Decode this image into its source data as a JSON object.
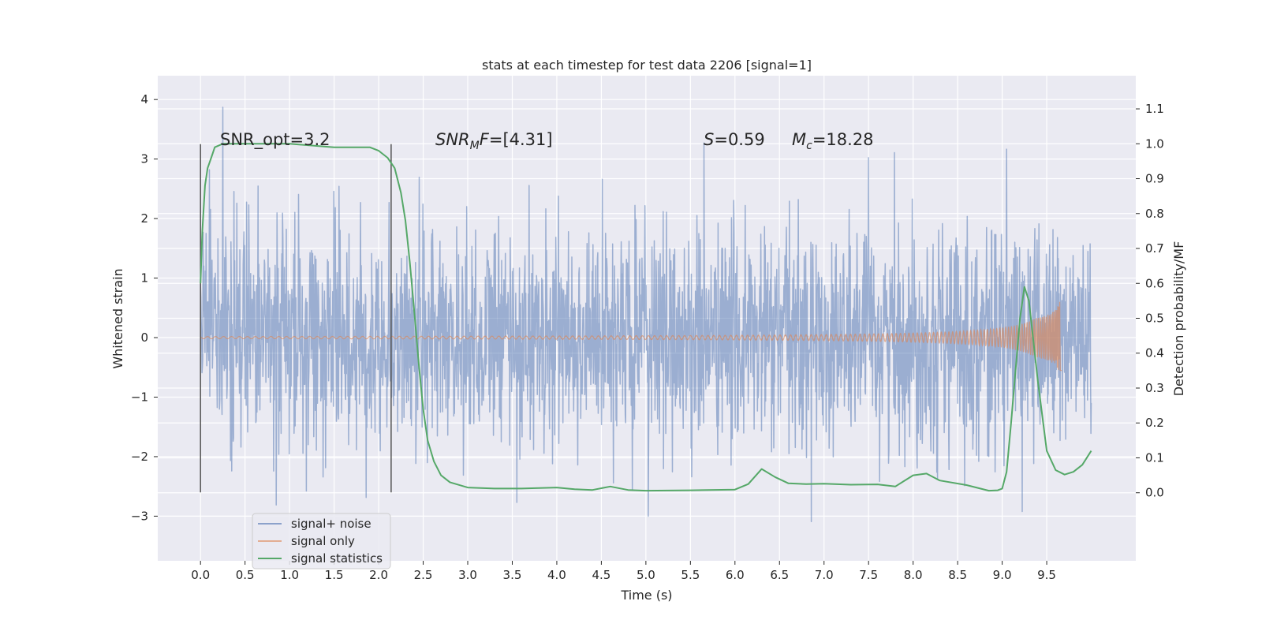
{
  "chart_data": {
    "type": "line",
    "title": "stats at each timestep for test data 2206 [signal=1]",
    "xlabel": "Time (s)",
    "ylabel": "Whitened strain",
    "ylabel_right": "Detection probability/MF",
    "xlim": [
      -0.48,
      10.5
    ],
    "ylim": [
      -3.75,
      4.4
    ],
    "ylim_right": [
      -0.195,
      1.195
    ],
    "x_ticks": [
      "0.0",
      "0.5",
      "1.0",
      "1.5",
      "2.0",
      "2.5",
      "3.0",
      "3.5",
      "4.0",
      "4.5",
      "5.0",
      "5.5",
      "6.0",
      "6.5",
      "7.0",
      "7.5",
      "8.0",
      "8.5",
      "9.0",
      "9.5"
    ],
    "y_ticks": [
      "4",
      "3",
      "2",
      "1",
      "0",
      "−1",
      "−2",
      "−3"
    ],
    "y_right_ticks": [
      "1.1",
      "1.0",
      "0.9",
      "0.8",
      "0.7",
      "0.6",
      "0.5",
      "0.4",
      "0.3",
      "0.2",
      "0.1",
      "0.0"
    ],
    "grid": true,
    "legend_position": "lower-left",
    "annotations": {
      "snr_opt": "SNR_opt=3.2",
      "snr_mf": "[4.31]",
      "stat_s": "=0.59",
      "chirp_mass": "=18.28"
    },
    "vertical_markers": [
      {
        "x": 0.0,
        "y_range": [
          -2.6,
          3.25
        ]
      },
      {
        "x": 2.14,
        "y_range": [
          -2.6,
          3.25
        ]
      }
    ],
    "series": [
      {
        "name": "signal+ noise",
        "color": "#4c72b0",
        "axis": "left",
        "noise_profile": {
          "x_range": [
            0.0,
            10.0
          ],
          "std": 0.93,
          "clip": [
            -3.4,
            4.05
          ]
        }
      },
      {
        "name": "signal only",
        "color": "#dd8452",
        "axis": "left",
        "chirp_profile": {
          "x_range": [
            0.0,
            9.67
          ],
          "peak_amplitude": 0.65,
          "peak_time": 9.67
        }
      },
      {
        "name": "signal statistics",
        "color": "#55a868",
        "axis": "right",
        "x": [
          0.0,
          0.02,
          0.05,
          0.08,
          0.12,
          0.16,
          0.25,
          0.5,
          1.0,
          1.5,
          1.7,
          1.9,
          2.0,
          2.1,
          2.18,
          2.25,
          2.3,
          2.35,
          2.4,
          2.45,
          2.5,
          2.55,
          2.62,
          2.7,
          2.8,
          3.0,
          3.3,
          3.6,
          4.0,
          4.2,
          4.4,
          4.6,
          4.8,
          5.0,
          5.5,
          6.0,
          6.15,
          6.3,
          6.45,
          6.6,
          6.8,
          7.0,
          7.3,
          7.6,
          7.8,
          8.0,
          8.15,
          8.3,
          8.6,
          8.85,
          8.95,
          9.0,
          9.05,
          9.1,
          9.15,
          9.2,
          9.25,
          9.3,
          9.4,
          9.5,
          9.6,
          9.7,
          9.8,
          9.9,
          10.0
        ],
        "y": [
          0.6,
          0.75,
          0.88,
          0.93,
          0.96,
          0.99,
          1.0,
          1.0,
          1.0,
          0.99,
          0.99,
          0.99,
          0.98,
          0.96,
          0.93,
          0.86,
          0.78,
          0.66,
          0.52,
          0.37,
          0.24,
          0.15,
          0.09,
          0.05,
          0.03,
          0.015,
          0.012,
          0.012,
          0.015,
          0.01,
          0.008,
          0.018,
          0.008,
          0.006,
          0.007,
          0.009,
          0.025,
          0.068,
          0.045,
          0.027,
          0.025,
          0.026,
          0.023,
          0.024,
          0.018,
          0.05,
          0.055,
          0.035,
          0.022,
          0.006,
          0.007,
          0.012,
          0.06,
          0.2,
          0.35,
          0.5,
          0.59,
          0.55,
          0.32,
          0.12,
          0.065,
          0.052,
          0.06,
          0.08,
          0.12
        ]
      }
    ]
  }
}
